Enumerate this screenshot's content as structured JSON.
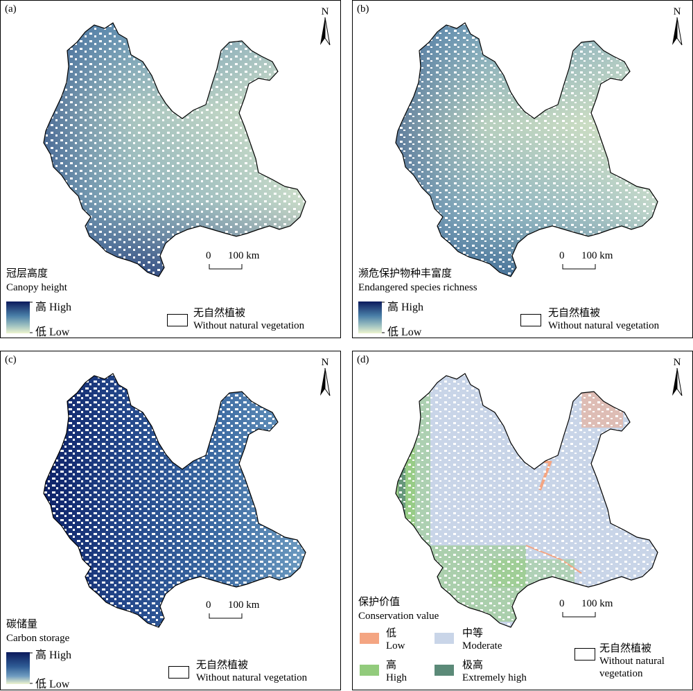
{
  "panels": [
    {
      "id": "a",
      "label": "(a)",
      "legend_title_cn": "冠层高度",
      "legend_title_en": "Canopy height",
      "high": "高 High",
      "low": "低 Low",
      "no_veg_cn": "无自然植被",
      "no_veg_en": "Without natural vegetation",
      "colors": [
        "#0b1a5c",
        "#4a7fa8",
        "#9dc0c0",
        "#eef4cf"
      ]
    },
    {
      "id": "b",
      "label": "(b)",
      "legend_title_cn": "濒危保护物种丰富度",
      "legend_title_en": "Endangered species richness",
      "high": "高 High",
      "low": "低 Low",
      "no_veg_cn": "无自然植被",
      "no_veg_en": "Without natural vegetation",
      "colors": [
        "#0b1a5c",
        "#4a7fa8",
        "#9dc0c0",
        "#eef4cf"
      ]
    },
    {
      "id": "c",
      "label": "(c)",
      "legend_title_cn": "碳储量",
      "legend_title_en": "Carbon storage",
      "high": "高 High",
      "low": "低 Low",
      "no_veg_cn": "无自然植被",
      "no_veg_en": "Without natural vegetation",
      "colors": [
        "#0b1a5c",
        "#2f5c95",
        "#6f9cc0",
        "#eef4cf"
      ]
    },
    {
      "id": "d",
      "label": "(d)",
      "legend_title_cn": "保护价值",
      "legend_title_en": "Conservation value",
      "categories": [
        {
          "cn": "低",
          "en": "Low",
          "color": "#f4a582"
        },
        {
          "cn": "中等",
          "en": "Moderate",
          "color": "#c9d5e8"
        },
        {
          "cn": "高",
          "en": "High",
          "color": "#92cb7c"
        },
        {
          "cn": "极高",
          "en": "Extremely high",
          "color": "#5b8a78"
        }
      ],
      "no_veg_cn": "无自然植被",
      "no_veg_en1": "Without natural",
      "no_veg_en2": "vegetation"
    }
  ],
  "north_label": "N",
  "scale": {
    "zero": "0",
    "distance": "100 km"
  }
}
